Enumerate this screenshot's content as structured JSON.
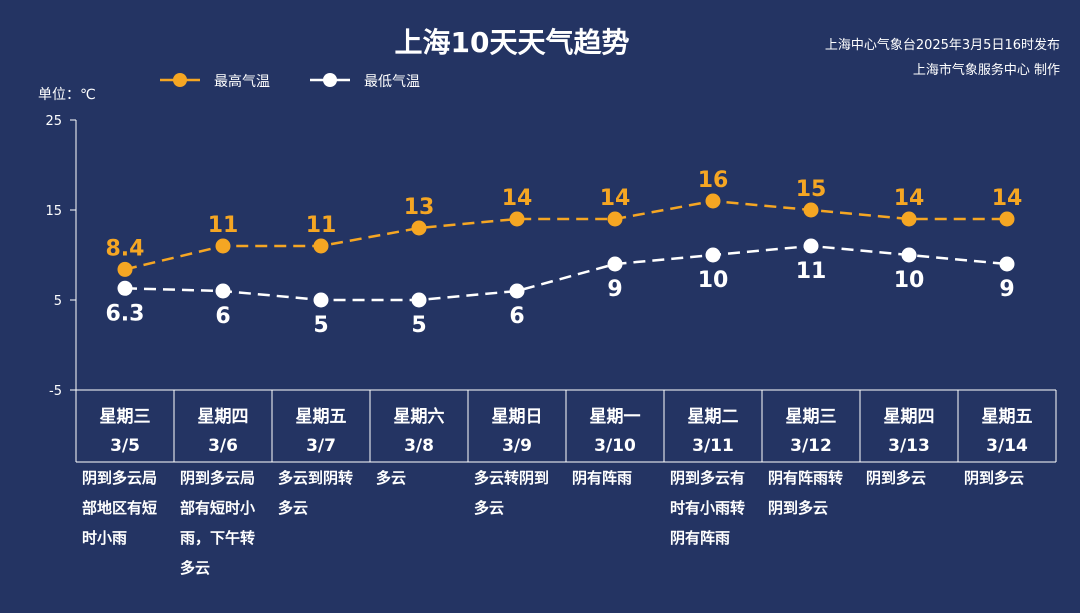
{
  "header": {
    "title": "上海10天天气趋势",
    "publisher_line1": "上海中心气象台2025年3月5日16时发布",
    "publisher_line2": "上海市气象服务中心 制作"
  },
  "colors": {
    "background": "#243463",
    "high": "#f5a623",
    "low": "#ffffff"
  },
  "chart_data": {
    "type": "line",
    "unit_label": "单位：℃",
    "ylim": [
      -5,
      25
    ],
    "yticks": [
      25,
      15,
      5,
      -5
    ],
    "days": [
      {
        "weekday": "星期三",
        "date": "3/5",
        "desc": [
          "阴到多云局",
          "部地区有短",
          "时小雨"
        ]
      },
      {
        "weekday": "星期四",
        "date": "3/6",
        "desc": [
          "阴到多云局",
          "部有短时小",
          "雨，下午转",
          "多云"
        ]
      },
      {
        "weekday": "星期五",
        "date": "3/7",
        "desc": [
          "多云到阴转",
          "多云"
        ]
      },
      {
        "weekday": "星期六",
        "date": "3/8",
        "desc": [
          "多云"
        ]
      },
      {
        "weekday": "星期日",
        "date": "3/9",
        "desc": [
          "多云转阴到",
          "多云"
        ]
      },
      {
        "weekday": "星期一",
        "date": "3/10",
        "desc": [
          "阴有阵雨"
        ]
      },
      {
        "weekday": "星期二",
        "date": "3/11",
        "desc": [
          "阴到多云有",
          "时有小雨转",
          "阴有阵雨"
        ]
      },
      {
        "weekday": "星期三",
        "date": "3/12",
        "desc": [
          "阴有阵雨转",
          "阴到多云"
        ]
      },
      {
        "weekday": "星期四",
        "date": "3/13",
        "desc": [
          "阴到多云"
        ]
      },
      {
        "weekday": "星期五",
        "date": "3/14",
        "desc": [
          "阴到多云"
        ]
      }
    ],
    "series": [
      {
        "name": "最高气温",
        "values": [
          8.4,
          11,
          11,
          13,
          14,
          14,
          16,
          15,
          14,
          14
        ],
        "labels": [
          "8.4",
          "11",
          "11",
          "13",
          "14",
          "14",
          "16",
          "15",
          "14",
          "14"
        ]
      },
      {
        "name": "最低气温",
        "values": [
          6.3,
          6,
          5,
          5,
          6,
          9,
          10,
          11,
          10,
          9
        ],
        "labels": [
          "6.3",
          "6",
          "5",
          "5",
          "6",
          "9",
          "10",
          "11",
          "10",
          "9"
        ]
      }
    ]
  }
}
